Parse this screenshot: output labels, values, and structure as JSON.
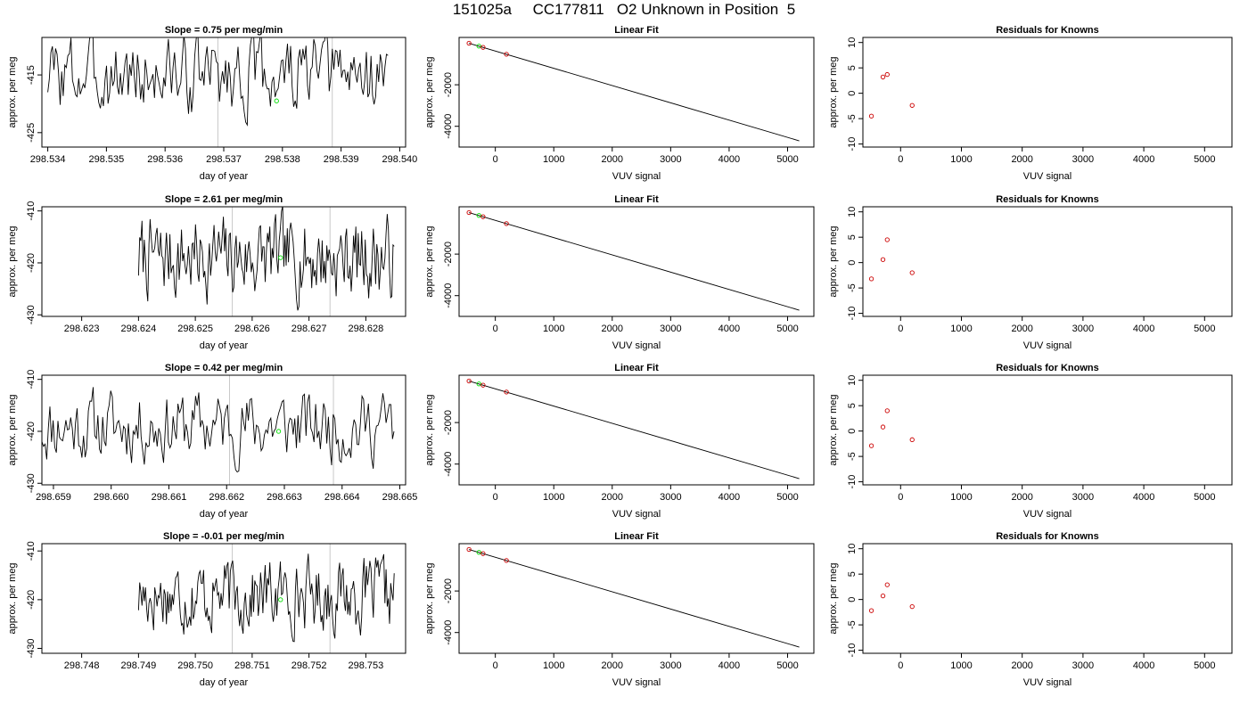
{
  "title": "151025a     CC177811   O2 Unknown in Position  5",
  "chart_data": [
    {
      "type": "line",
      "title": "Slope =  0.75  per meg/min",
      "xlabel": "day of year",
      "ylabel": "approx. per meg",
      "xlim": [
        298.5339,
        298.5401
      ],
      "ylim": [
        -427.5,
        -408.5
      ],
      "xticks": [
        "298.534",
        "298.535",
        "298.536",
        "298.537",
        "298.538",
        "298.539",
        "298.540"
      ],
      "yticks": [
        "-415",
        "-425"
      ],
      "vlines": [
        298.5369,
        298.53885
      ],
      "series": [
        {
          "x_start": 298.534,
          "x_end": 298.5398,
          "seed": 3,
          "base": -415,
          "amp": 6.5
        }
      ],
      "points": [
        {
          "x": 298.5379,
          "y": -419.5,
          "color": "#00dd00"
        }
      ]
    },
    {
      "type": "scatter",
      "title": "Linear Fit",
      "xlabel": "VUV signal",
      "ylabel": "approx. per meg",
      "xlim": [
        -620,
        5450
      ],
      "ylim": [
        -5000,
        280
      ],
      "xticks": [
        "0",
        "1000",
        "2000",
        "3000",
        "4000",
        "5000"
      ],
      "yticks": [
        "-2000",
        "-4000"
      ],
      "line": {
        "x": [
          -450,
          5200
        ],
        "y": [
          0,
          -4700
        ]
      },
      "points": [
        {
          "x": -450,
          "y": 0,
          "color": "#cc0000"
        },
        {
          "x": -280,
          "y": -140,
          "color": "#00dd00"
        },
        {
          "x": -210,
          "y": -200,
          "color": "#cc0000"
        },
        {
          "x": 190,
          "y": -530,
          "color": "#cc0000"
        }
      ]
    },
    {
      "type": "scatter",
      "title": "Residuals for Knowns",
      "xlabel": "VUV signal",
      "ylabel": "approx. per meg",
      "xlim": [
        -620,
        5450
      ],
      "ylim": [
        -10.6,
        11
      ],
      "xticks": [
        "0",
        "1000",
        "2000",
        "3000",
        "4000",
        "5000"
      ],
      "yticks": [
        "-10",
        "-5",
        "0",
        "5",
        "10"
      ],
      "points": [
        {
          "x": -480,
          "y": -4.5,
          "color": "#cc0000"
        },
        {
          "x": -290,
          "y": 3.2,
          "color": "#cc0000"
        },
        {
          "x": -220,
          "y": 3.7,
          "color": "#cc0000"
        },
        {
          "x": 190,
          "y": -2.4,
          "color": "#cc0000"
        }
      ]
    },
    {
      "type": "line",
      "title": "Slope =  2.61  per meg/min",
      "xlabel": "day of year",
      "ylabel": "approx. per meg",
      "xlim": [
        298.6223,
        298.6287
      ],
      "ylim": [
        -430.3,
        -409.2
      ],
      "xticks": [
        "298.623",
        "298.624",
        "298.625",
        "298.626",
        "298.627",
        "298.628"
      ],
      "yticks": [
        "-410",
        "-420",
        "-430"
      ],
      "vlines": [
        298.62565,
        298.62737
      ],
      "series": [
        {
          "x_start": 298.624,
          "x_end": 298.6285,
          "seed": 7,
          "base": -419,
          "amp": 7.5
        }
      ],
      "points": [
        {
          "x": 298.6265,
          "y": -419,
          "color": "#00dd00"
        }
      ]
    },
    {
      "type": "scatter",
      "title": "Linear Fit",
      "xlabel": "VUV signal",
      "ylabel": "approx. per meg",
      "xlim": [
        -620,
        5450
      ],
      "ylim": [
        -5000,
        280
      ],
      "xticks": [
        "0",
        "1000",
        "2000",
        "3000",
        "4000",
        "5000"
      ],
      "yticks": [
        "-2000",
        "-4000"
      ],
      "line": {
        "x": [
          -450,
          5200
        ],
        "y": [
          0,
          -4700
        ]
      },
      "points": [
        {
          "x": -450,
          "y": 0,
          "color": "#cc0000"
        },
        {
          "x": -280,
          "y": -140,
          "color": "#00dd00"
        },
        {
          "x": -210,
          "y": -200,
          "color": "#cc0000"
        },
        {
          "x": 190,
          "y": -530,
          "color": "#cc0000"
        }
      ]
    },
    {
      "type": "scatter",
      "title": "Residuals for Knowns",
      "xlabel": "VUV signal",
      "ylabel": "approx. per meg",
      "xlim": [
        -620,
        5450
      ],
      "ylim": [
        -10.6,
        11
      ],
      "xticks": [
        "0",
        "1000",
        "2000",
        "3000",
        "4000",
        "5000"
      ],
      "yticks": [
        "-10",
        "-5",
        "0",
        "5",
        "10"
      ],
      "points": [
        {
          "x": -480,
          "y": -3.2,
          "color": "#cc0000"
        },
        {
          "x": -290,
          "y": 0.6,
          "color": "#cc0000"
        },
        {
          "x": -220,
          "y": 4.5,
          "color": "#cc0000"
        },
        {
          "x": 190,
          "y": -2.0,
          "color": "#cc0000"
        }
      ]
    },
    {
      "type": "line",
      "title": "Slope =  0.42  per meg/min",
      "xlabel": "day of year",
      "ylabel": "approx. per meg",
      "xlim": [
        298.6588,
        298.6651
      ],
      "ylim": [
        -430.3,
        -409.2
      ],
      "xticks": [
        "298.659",
        "298.660",
        "298.661",
        "298.662",
        "298.663",
        "298.664",
        "298.665"
      ],
      "yticks": [
        "-410",
        "-420",
        "-430"
      ],
      "vlines": [
        298.66205,
        298.66385
      ],
      "series": [
        {
          "x_start": 298.6588,
          "x_end": 298.6649,
          "seed": 11,
          "base": -419,
          "amp": 6.5
        }
      ],
      "points": [
        {
          "x": 298.6629,
          "y": -420,
          "color": "#00dd00"
        }
      ]
    },
    {
      "type": "scatter",
      "title": "Linear Fit",
      "xlabel": "VUV signal",
      "ylabel": "approx. per meg",
      "xlim": [
        -620,
        5450
      ],
      "ylim": [
        -5000,
        280
      ],
      "xticks": [
        "0",
        "1000",
        "2000",
        "3000",
        "4000",
        "5000"
      ],
      "yticks": [
        "-2000",
        "-4000"
      ],
      "line": {
        "x": [
          -450,
          5200
        ],
        "y": [
          0,
          -4700
        ]
      },
      "points": [
        {
          "x": -450,
          "y": 0,
          "color": "#cc0000"
        },
        {
          "x": -280,
          "y": -140,
          "color": "#00dd00"
        },
        {
          "x": -210,
          "y": -200,
          "color": "#cc0000"
        },
        {
          "x": 190,
          "y": -530,
          "color": "#cc0000"
        }
      ]
    },
    {
      "type": "scatter",
      "title": "Residuals for Knowns",
      "xlabel": "VUV signal",
      "ylabel": "approx. per meg",
      "xlim": [
        -620,
        5450
      ],
      "ylim": [
        -10.6,
        11
      ],
      "xticks": [
        "0",
        "1000",
        "2000",
        "3000",
        "4000",
        "5000"
      ],
      "yticks": [
        "-10",
        "-5",
        "0",
        "5",
        "10"
      ],
      "points": [
        {
          "x": -480,
          "y": -2.9,
          "color": "#cc0000"
        },
        {
          "x": -290,
          "y": 0.8,
          "color": "#cc0000"
        },
        {
          "x": -220,
          "y": 4.0,
          "color": "#cc0000"
        },
        {
          "x": 190,
          "y": -1.7,
          "color": "#cc0000"
        }
      ]
    },
    {
      "type": "line",
      "title": "Slope =  -0.01  per meg/min",
      "xlabel": "day of year",
      "ylabel": "approx. per meg",
      "xlim": [
        298.7473,
        298.7537
      ],
      "ylim": [
        -431,
        -408.5
      ],
      "xticks": [
        "298.748",
        "298.749",
        "298.750",
        "298.751",
        "298.752",
        "298.753"
      ],
      "yticks": [
        "-410",
        "-420",
        "-430"
      ],
      "vlines": [
        298.75065,
        298.75237
      ],
      "series": [
        {
          "x_start": 298.749,
          "x_end": 298.7535,
          "seed": 17,
          "base": -419,
          "amp": 7
        }
      ],
      "points": [
        {
          "x": 298.7515,
          "y": -420,
          "color": "#00dd00"
        }
      ]
    },
    {
      "type": "scatter",
      "title": "Linear Fit",
      "xlabel": "VUV signal",
      "ylabel": "approx. per meg",
      "xlim": [
        -620,
        5450
      ],
      "ylim": [
        -5000,
        280
      ],
      "xticks": [
        "0",
        "1000",
        "2000",
        "3000",
        "4000",
        "5000"
      ],
      "yticks": [
        "-2000",
        "-4000"
      ],
      "line": {
        "x": [
          -450,
          5200
        ],
        "y": [
          0,
          -4700
        ]
      },
      "points": [
        {
          "x": -450,
          "y": 0,
          "color": "#cc0000"
        },
        {
          "x": -280,
          "y": -140,
          "color": "#00dd00"
        },
        {
          "x": -210,
          "y": -200,
          "color": "#cc0000"
        },
        {
          "x": 190,
          "y": -530,
          "color": "#cc0000"
        }
      ]
    },
    {
      "type": "scatter",
      "title": "Residuals for Knowns",
      "xlabel": "VUV signal",
      "ylabel": "approx. per meg",
      "xlim": [
        -620,
        5450
      ],
      "ylim": [
        -10.6,
        11
      ],
      "xticks": [
        "0",
        "1000",
        "2000",
        "3000",
        "4000",
        "5000"
      ],
      "yticks": [
        "-10",
        "-5",
        "0",
        "5",
        "10"
      ],
      "points": [
        {
          "x": -480,
          "y": -2.2,
          "color": "#cc0000"
        },
        {
          "x": -290,
          "y": 0.7,
          "color": "#cc0000"
        },
        {
          "x": -220,
          "y": 2.9,
          "color": "#cc0000"
        },
        {
          "x": 190,
          "y": -1.4,
          "color": "#cc0000"
        }
      ]
    }
  ]
}
